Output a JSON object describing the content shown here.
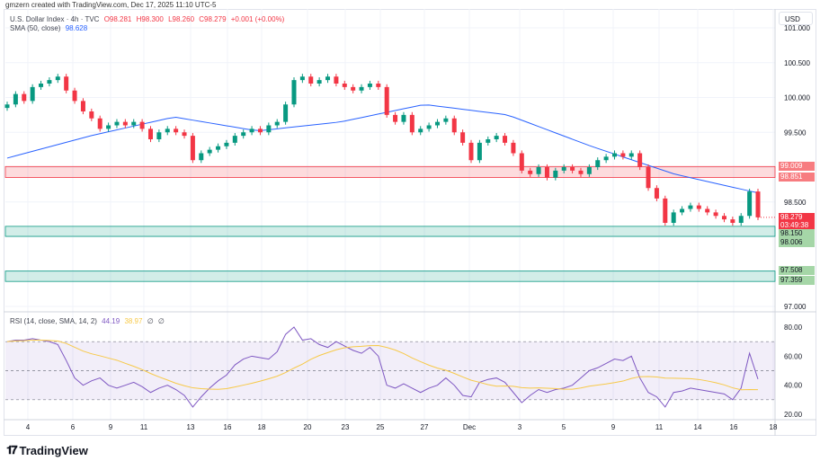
{
  "credit": "gmzern created with TradingView.com, Dec 17, 2025 11:10 UTC-5",
  "legend": {
    "symbol": "U.S. Dollar Index · 4h · TVC",
    "open": "O98.281",
    "high": "H98.300",
    "low": "L98.260",
    "close": "C98.279",
    "change": "+0.001 (+0.00%)",
    "sma_label": "SMA (50, close)",
    "sma_value": "98.628",
    "rsi_label": "RSI (14, close, SMA, 14, 2)",
    "rsi_value": "44.19",
    "rsi_ma_value": "38.97",
    "rsi_extra1": "∅",
    "rsi_extra2": "∅"
  },
  "currency": "USD",
  "branding": "TradingView",
  "price_tags": {
    "zone_top_high": "99.009",
    "zone_top_low": "98.851",
    "last_price": "98.279",
    "countdown": "03:49:38",
    "zone_mid_high": "98.150",
    "zone_mid_low": "98.006",
    "zone_low_high": "97.508",
    "zone_low_low": "97.359"
  },
  "colors": {
    "up": "#089981",
    "down": "#f23645",
    "sma": "#2962ff",
    "rsi": "#7e57c2",
    "rsi_ma": "#f7c948",
    "resistance_zone": "#f23645",
    "support_zone": "#089981"
  },
  "chart_data": [
    {
      "type": "candlestick",
      "title": "U.S. Dollar Index · 4h · TVC",
      "ylim": [
        97.0,
        101.0
      ],
      "y_ticks": [
        "101.000",
        "100.500",
        "100.000",
        "99.500",
        "98.500",
        "97.000"
      ],
      "x_ticks": [
        "4",
        "6",
        "9",
        "11",
        "13",
        "16",
        "18",
        "20",
        "23",
        "25",
        "27",
        "Dec",
        "3",
        "5",
        "9",
        "11",
        "14",
        "16",
        "18"
      ],
      "grid": true,
      "first_open": 99.85,
      "closes": [
        99.9,
        100.05,
        99.95,
        100.15,
        100.2,
        100.25,
        100.3,
        100.1,
        99.95,
        99.8,
        99.7,
        99.55,
        99.6,
        99.65,
        99.6,
        99.65,
        99.55,
        99.4,
        99.5,
        99.55,
        99.5,
        99.45,
        99.1,
        99.2,
        99.25,
        99.3,
        99.35,
        99.45,
        99.5,
        99.55,
        99.5,
        99.6,
        99.65,
        99.9,
        100.25,
        100.3,
        100.2,
        100.25,
        100.3,
        100.2,
        100.15,
        100.1,
        100.15,
        100.2,
        100.15,
        99.75,
        99.65,
        99.75,
        99.5,
        99.55,
        99.6,
        99.65,
        99.7,
        99.5,
        99.35,
        99.1,
        99.35,
        99.4,
        99.45,
        99.35,
        99.2,
        98.95,
        98.9,
        99.0,
        98.85,
        98.95,
        99.0,
        98.95,
        98.9,
        99.0,
        99.1,
        99.15,
        99.2,
        99.15,
        99.2,
        99.0,
        98.7,
        98.55,
        98.2,
        98.35,
        98.4,
        98.45,
        98.4,
        98.35,
        98.3,
        98.25,
        98.2,
        98.3,
        98.65,
        98.279
      ],
      "sma_50_samples": [
        99.13,
        99.45,
        99.72,
        99.52,
        99.65,
        99.9,
        99.75,
        99.3,
        98.9,
        98.63
      ],
      "zones": [
        {
          "kind": "resistance",
          "from": 98.851,
          "to": 99.009
        },
        {
          "kind": "support",
          "from": 98.006,
          "to": 98.15
        },
        {
          "kind": "support",
          "from": 97.359,
          "to": 97.508
        }
      ]
    },
    {
      "type": "line",
      "title": "RSI (14, close, SMA, 14, 2)",
      "ylim": [
        20,
        80
      ],
      "y_ticks": [
        "80.00",
        "60.00",
        "40.00",
        "20.00"
      ],
      "band": [
        30,
        70
      ],
      "rsi": [
        70,
        71,
        71,
        72,
        71,
        70,
        68,
        57,
        45,
        40,
        43,
        45,
        40,
        38,
        40,
        42,
        39,
        35,
        38,
        40,
        37,
        33,
        25,
        32,
        38,
        43,
        47,
        54,
        58,
        60,
        59,
        58,
        63,
        75,
        80,
        71,
        72,
        68,
        66,
        70,
        67,
        64,
        62,
        66,
        60,
        40,
        38,
        41,
        38,
        35,
        38,
        40,
        45,
        40,
        33,
        32,
        42,
        44,
        45,
        42,
        35,
        28,
        33,
        37,
        35,
        37,
        38,
        40,
        45,
        50,
        52,
        55,
        58,
        57,
        60,
        45,
        35,
        32,
        25,
        35,
        36,
        38,
        37,
        36,
        35,
        34,
        30,
        38,
        62,
        44.19
      ],
      "ma_length": 14
    }
  ]
}
